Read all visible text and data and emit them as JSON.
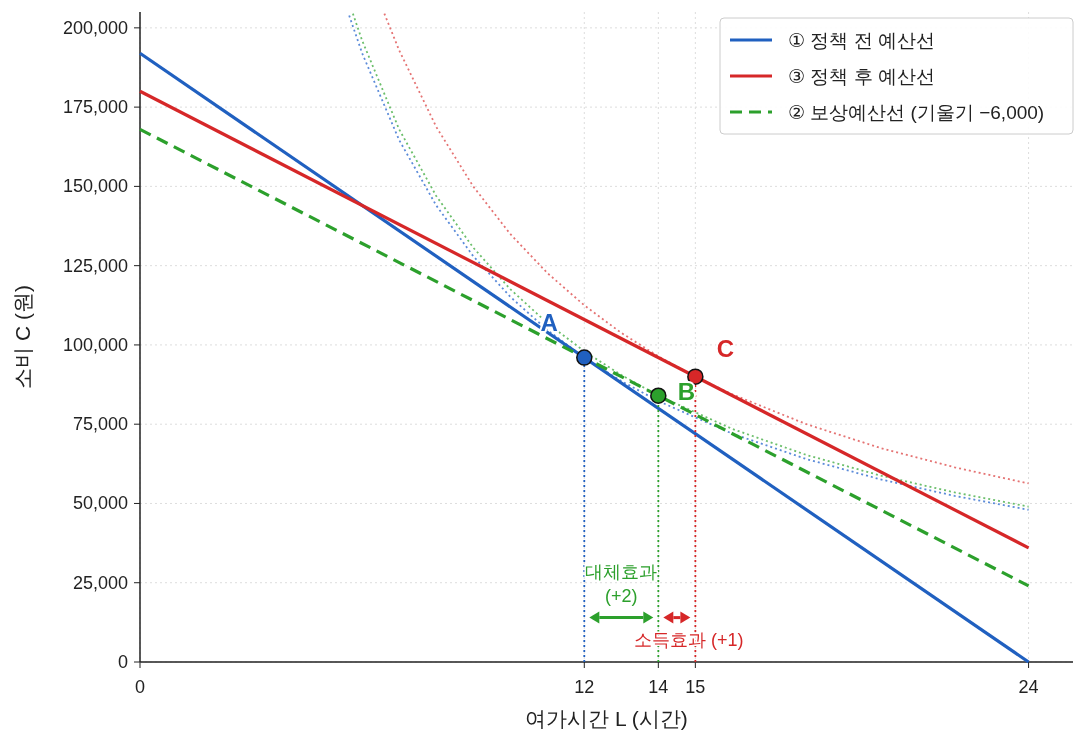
{
  "chart_data": {
    "type": "line",
    "xlabel": "여가시간 L (시간)",
    "ylabel": "소비 C (원)",
    "xlim": [
      0,
      25.2
    ],
    "ylim": [
      0,
      205000
    ],
    "xticks": [
      0,
      12,
      14,
      15,
      24
    ],
    "yticks": [
      {
        "value": 0,
        "label": "0"
      },
      {
        "value": 25000,
        "label": "25,000"
      },
      {
        "value": 50000,
        "label": "50,000"
      },
      {
        "value": 75000,
        "label": "75,000"
      },
      {
        "value": 100000,
        "label": "100,000"
      },
      {
        "value": 125000,
        "label": "125,000"
      },
      {
        "value": 150000,
        "label": "150,000"
      },
      {
        "value": 175000,
        "label": "175,000"
      },
      {
        "value": 200000,
        "label": "200,000"
      }
    ],
    "grid": true,
    "legend": "top right",
    "series": [
      {
        "type": "line",
        "color": "#5b8bd9",
        "line_style": "dotted",
        "x": [
          5.65,
          6,
          7,
          8,
          9,
          10,
          11,
          12,
          13,
          14,
          16,
          18,
          20,
          22,
          24
        ],
        "values": [
          203900,
          192000,
          164600,
          144000,
          128000,
          115200,
          104700,
          96000,
          88600,
          82300,
          72000,
          64000,
          57600,
          52400,
          48000
        ]
      },
      {
        "type": "line",
        "color": "#6cbf6c",
        "line_style": "dotted",
        "x": [
          5.75,
          6,
          7,
          8,
          9,
          10,
          11,
          12,
          13,
          14,
          16,
          18,
          20,
          22,
          24
        ],
        "values": [
          204500,
          196000,
          168000,
          147000,
          130700,
          117600,
          106900,
          98000,
          90500,
          84000,
          73500,
          65300,
          58800,
          53500,
          49000
        ]
      },
      {
        "type": "line",
        "color": "#e57373",
        "line_style": "dotted",
        "x": [
          6.6,
          7,
          8,
          9,
          10,
          11,
          12,
          13,
          14,
          15,
          16,
          18,
          20,
          22,
          24
        ],
        "values": [
          204500,
          192900,
          168800,
          150000,
          135000,
          122700,
          112500,
          103800,
          96400,
          90000,
          84400,
          75000,
          67500,
          61400,
          56300
        ]
      },
      {
        "name": "① 정책 전 예산선",
        "type": "line",
        "color": "#2060c0",
        "line_style": "solid",
        "x": [
          0,
          24
        ],
        "values": [
          192000,
          0
        ]
      },
      {
        "name": "③ 정책 후 예산선",
        "type": "line",
        "color": "#d62728",
        "line_style": "solid",
        "x": [
          0,
          24
        ],
        "values": [
          180000,
          36000
        ]
      },
      {
        "name": "② 보상예산선 (기울기 −6,000)",
        "type": "line",
        "color": "#2ca02c",
        "line_style": "dashed",
        "x": [
          0,
          24
        ],
        "values": [
          168000,
          24000
        ]
      },
      {
        "type": "line",
        "color": "#2060c0",
        "line_style": "dotted",
        "x": [
          12,
          12
        ],
        "values": [
          0,
          96000
        ]
      },
      {
        "type": "line",
        "color": "#2ca02c",
        "line_style": "dotted",
        "x": [
          14,
          14
        ],
        "values": [
          0,
          84000
        ]
      },
      {
        "type": "line",
        "color": "#d62728",
        "line_style": "dotted",
        "x": [
          15,
          15
        ],
        "values": [
          0,
          90000
        ]
      },
      {
        "type": "scatter",
        "color": "#2060c0",
        "marker": "circle",
        "x": [
          12
        ],
        "values": [
          96000
        ]
      },
      {
        "type": "scatter",
        "color": "#2ca02c",
        "marker": "circle",
        "x": [
          14
        ],
        "values": [
          84000
        ]
      },
      {
        "type": "scatter",
        "color": "#d62728",
        "marker": "circle",
        "x": [
          15
        ],
        "values": [
          90000
        ]
      }
    ],
    "annotations": [
      {
        "text": "A",
        "x": 12,
        "y": 96000
      },
      {
        "text": "B",
        "x": 14,
        "y": 84000
      },
      {
        "text": "C",
        "x": 15,
        "y": 90000
      },
      "대체효과\n(+2)",
      "소득효과 (+1)"
    ]
  }
}
